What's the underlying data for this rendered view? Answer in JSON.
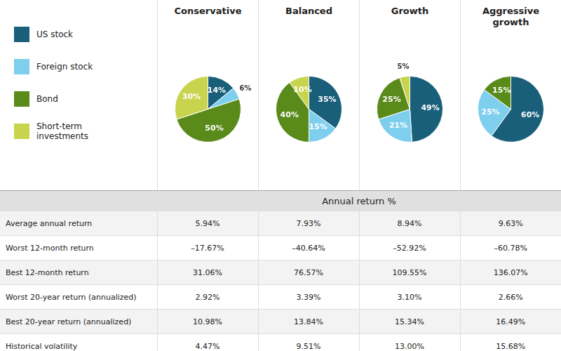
{
  "chart_data": [
    {
      "type": "pie",
      "title": "Conservative",
      "categories": [
        "US stock",
        "Foreign stock",
        "Bond",
        "Short-term\ninvestments"
      ],
      "values": [
        14,
        6,
        50,
        30
      ],
      "value_labels": [
        "14%",
        "6%",
        "50%",
        "30%"
      ],
      "colors": [
        "#1a5f7a",
        "#7ecfed",
        "#5a8a1a",
        "#c8d44e"
      ],
      "data_labels": true,
      "legend": "left"
    },
    {
      "type": "pie",
      "title": "Balanced",
      "categories": [
        "US stock",
        "Foreign stock",
        "Bond",
        "Short-term\ninvestments"
      ],
      "values": [
        35,
        15,
        40,
        10
      ],
      "value_labels": [
        "35%",
        "15%",
        "40%",
        "10%"
      ],
      "colors": [
        "#1a5f7a",
        "#7ecfed",
        "#5a8a1a",
        "#c8d44e"
      ],
      "data_labels": true,
      "legend": "left"
    },
    {
      "type": "pie",
      "title": "Growth",
      "categories": [
        "US stock",
        "Foreign stock",
        "Bond",
        "Short-term\ninvestments"
      ],
      "values": [
        49,
        21,
        25,
        5
      ],
      "value_labels": [
        "49%",
        "21%",
        "25%",
        "5%"
      ],
      "colors": [
        "#1a5f7a",
        "#7ecfed",
        "#5a8a1a",
        "#c8d44e"
      ],
      "data_labels": true,
      "legend": "left"
    },
    {
      "type": "pie",
      "title": "Aggressive\ngrowth",
      "categories": [
        "US stock",
        "Foreign stock",
        "Bond"
      ],
      "values": [
        60,
        25,
        15
      ],
      "value_labels": [
        "60%",
        "25%",
        "15%"
      ],
      "colors": [
        "#1a5f7a",
        "#7ecfed",
        "#5a8a1a"
      ],
      "data_labels": true,
      "legend": "left"
    },
    {
      "type": "table",
      "title": "Annual return %",
      "categories": [
        "Average annual return",
        "Worst 12-month return",
        "Best 12-month return",
        "Worst 20-year return (annualized)",
        "Best 20-year return (annualized)",
        "Historical volatility"
      ],
      "series": [
        {
          "values": [
            5.94,
            -17.67,
            31.06,
            2.92,
            10.98,
            4.47
          ],
          "value_labels": [
            "5.94%",
            "–17.67%",
            "31.06%",
            "2.92%",
            "10.98%",
            "4.47%"
          ]
        },
        {
          "values": [
            7.93,
            -40.64,
            76.57,
            3.39,
            13.84,
            9.51
          ],
          "value_labels": [
            "7.93%",
            "–40.64%",
            "76.57%",
            "3.39%",
            "13.84%",
            "9.51%"
          ]
        },
        {
          "values": [
            8.94,
            -52.92,
            109.55,
            3.1,
            15.34,
            13.0
          ],
          "value_labels": [
            "8.94%",
            "–52.92%",
            "109.55%",
            "3.10%",
            "15.34%",
            "13.00%"
          ]
        },
        {
          "values": [
            9.63,
            -60.78,
            136.07,
            2.66,
            16.49,
            15.68
          ],
          "value_labels": [
            "9.63%",
            "–60.78%",
            "136.07%",
            "2.66%",
            "16.49%",
            "15.68%"
          ]
        }
      ]
    }
  ]
}
